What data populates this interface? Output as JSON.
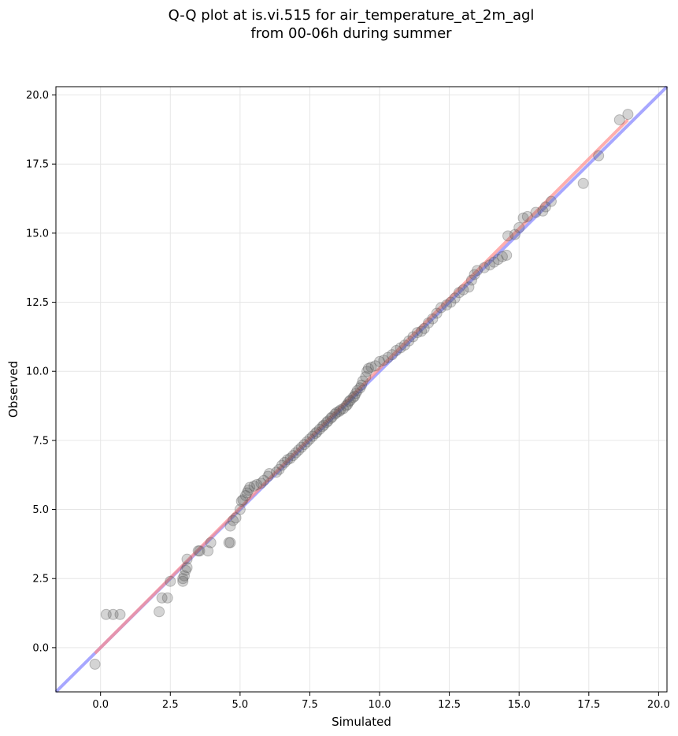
{
  "chart_data": {
    "type": "scatter",
    "title_line1": "Q-Q plot at is.vi.515 for air_temperature_at_2m_agl",
    "title_line2": "from 00-06h during summer",
    "xlabel": "Simulated",
    "ylabel": "Observed",
    "xlim": [
      -1.6,
      20.3
    ],
    "ylim": [
      -1.6,
      20.3
    ],
    "x_ticks": [
      0.0,
      2.5,
      5.0,
      7.5,
      10.0,
      12.5,
      15.0,
      17.5,
      20.0
    ],
    "y_ticks": [
      0.0,
      2.5,
      5.0,
      7.5,
      10.0,
      12.5,
      15.0,
      17.5,
      20.0
    ],
    "x_tick_labels": [
      "0.0",
      "2.5",
      "5.0",
      "7.5",
      "10.0",
      "12.5",
      "15.0",
      "17.5",
      "20.0"
    ],
    "y_tick_labels": [
      "0.0",
      "2.5",
      "5.0",
      "7.5",
      "10.0",
      "12.5",
      "15.0",
      "17.5",
      "20.0"
    ],
    "grid": true,
    "colors": {
      "points": "#555555",
      "identity_line": "#8a8aff",
      "fit_line": "#ff8c8c",
      "grid": "#e6e6e6"
    },
    "identity_line": {
      "x": [
        -1.6,
        20.3
      ],
      "y": [
        -1.6,
        20.3
      ]
    },
    "fit_line": {
      "x": [
        -0.2,
        18.9
      ],
      "y": [
        -0.2,
        19.1
      ]
    },
    "points": [
      [
        -0.2,
        -0.6
      ],
      [
        0.2,
        1.2
      ],
      [
        0.45,
        1.2
      ],
      [
        0.7,
        1.2
      ],
      [
        2.1,
        1.3
      ],
      [
        2.2,
        1.8
      ],
      [
        2.4,
        1.8
      ],
      [
        2.5,
        2.4
      ],
      [
        2.95,
        2.4
      ],
      [
        2.95,
        2.5
      ],
      [
        3.0,
        2.6
      ],
      [
        3.05,
        2.8
      ],
      [
        3.1,
        2.9
      ],
      [
        3.1,
        3.2
      ],
      [
        3.5,
        3.5
      ],
      [
        3.55,
        3.5
      ],
      [
        3.85,
        3.5
      ],
      [
        3.95,
        3.8
      ],
      [
        4.6,
        3.8
      ],
      [
        4.65,
        3.8
      ],
      [
        4.65,
        4.4
      ],
      [
        4.75,
        4.6
      ],
      [
        4.85,
        4.7
      ],
      [
        5.0,
        5.0
      ],
      [
        5.05,
        5.3
      ],
      [
        5.1,
        5.35
      ],
      [
        5.2,
        5.5
      ],
      [
        5.25,
        5.6
      ],
      [
        5.3,
        5.7
      ],
      [
        5.35,
        5.8
      ],
      [
        5.5,
        5.85
      ],
      [
        5.6,
        5.9
      ],
      [
        5.75,
        5.95
      ],
      [
        5.85,
        6.05
      ],
      [
        6.0,
        6.2
      ],
      [
        6.05,
        6.3
      ],
      [
        6.3,
        6.35
      ],
      [
        6.4,
        6.45
      ],
      [
        6.5,
        6.6
      ],
      [
        6.6,
        6.7
      ],
      [
        6.7,
        6.8
      ],
      [
        6.8,
        6.85
      ],
      [
        6.9,
        6.95
      ],
      [
        7.0,
        7.05
      ],
      [
        7.1,
        7.15
      ],
      [
        7.2,
        7.25
      ],
      [
        7.3,
        7.35
      ],
      [
        7.4,
        7.45
      ],
      [
        7.5,
        7.55
      ],
      [
        7.6,
        7.65
      ],
      [
        7.7,
        7.75
      ],
      [
        7.75,
        7.8
      ],
      [
        7.85,
        7.9
      ],
      [
        7.95,
        8.0
      ],
      [
        8.0,
        8.05
      ],
      [
        8.1,
        8.15
      ],
      [
        8.15,
        8.2
      ],
      [
        8.25,
        8.3
      ],
      [
        8.3,
        8.35
      ],
      [
        8.4,
        8.45
      ],
      [
        8.45,
        8.5
      ],
      [
        8.55,
        8.55
      ],
      [
        8.6,
        8.6
      ],
      [
        8.7,
        8.65
      ],
      [
        8.8,
        8.75
      ],
      [
        8.85,
        8.8
      ],
      [
        8.9,
        8.9
      ],
      [
        8.95,
        8.95
      ],
      [
        9.05,
        9.05
      ],
      [
        9.1,
        9.1
      ],
      [
        9.15,
        9.2
      ],
      [
        9.2,
        9.3
      ],
      [
        9.3,
        9.4
      ],
      [
        9.35,
        9.5
      ],
      [
        9.4,
        9.65
      ],
      [
        9.5,
        9.8
      ],
      [
        9.55,
        10.0
      ],
      [
        9.6,
        10.1
      ],
      [
        9.7,
        10.15
      ],
      [
        9.85,
        10.2
      ],
      [
        10.0,
        10.35
      ],
      [
        10.15,
        10.4
      ],
      [
        10.3,
        10.5
      ],
      [
        10.45,
        10.6
      ],
      [
        10.6,
        10.75
      ],
      [
        10.75,
        10.85
      ],
      [
        10.9,
        10.95
      ],
      [
        11.05,
        11.1
      ],
      [
        11.2,
        11.25
      ],
      [
        11.35,
        11.4
      ],
      [
        11.5,
        11.45
      ],
      [
        11.6,
        11.55
      ],
      [
        11.75,
        11.75
      ],
      [
        11.9,
        11.9
      ],
      [
        12.05,
        12.1
      ],
      [
        12.2,
        12.3
      ],
      [
        12.4,
        12.4
      ],
      [
        12.55,
        12.5
      ],
      [
        12.7,
        12.65
      ],
      [
        12.85,
        12.85
      ],
      [
        13.0,
        12.95
      ],
      [
        13.2,
        13.05
      ],
      [
        13.3,
        13.3
      ],
      [
        13.4,
        13.5
      ],
      [
        13.5,
        13.65
      ],
      [
        13.75,
        13.75
      ],
      [
        13.95,
        13.85
      ],
      [
        14.1,
        13.95
      ],
      [
        14.25,
        14.05
      ],
      [
        14.4,
        14.15
      ],
      [
        14.55,
        14.2
      ],
      [
        14.6,
        14.9
      ],
      [
        14.85,
        14.95
      ],
      [
        15.0,
        15.2
      ],
      [
        15.15,
        15.55
      ],
      [
        15.3,
        15.6
      ],
      [
        15.6,
        15.75
      ],
      [
        15.85,
        15.8
      ],
      [
        15.95,
        15.95
      ],
      [
        16.15,
        16.15
      ],
      [
        17.3,
        16.8
      ],
      [
        17.85,
        17.8
      ],
      [
        18.6,
        19.1
      ],
      [
        18.9,
        19.3
      ]
    ]
  }
}
